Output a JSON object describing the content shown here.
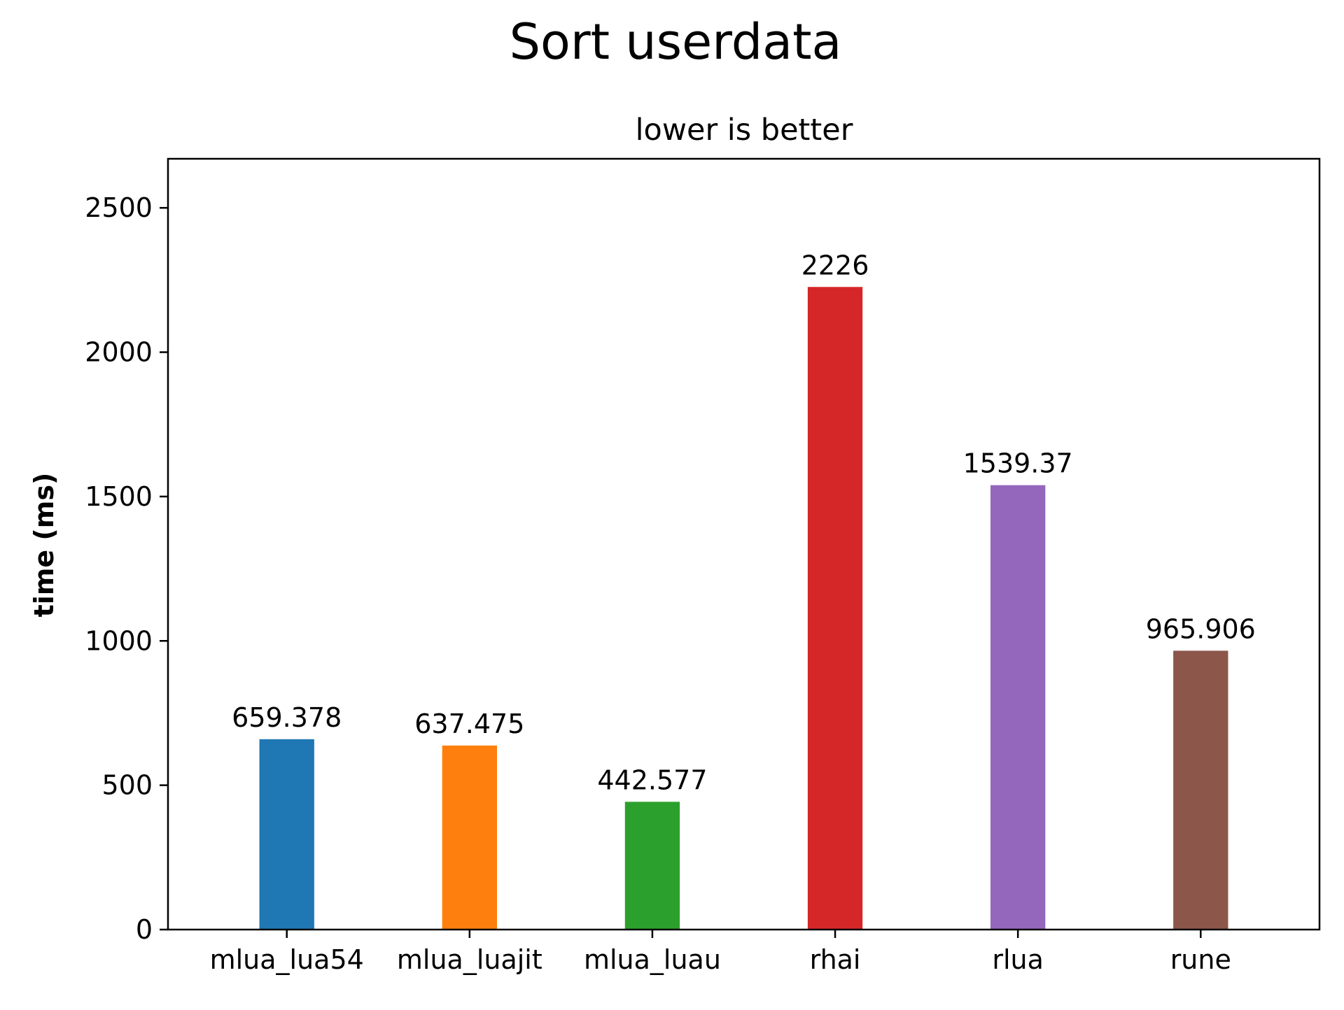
{
  "chart_data": {
    "type": "bar",
    "title": "Sort userdata",
    "subtitle": "lower is better",
    "xlabel": "",
    "ylabel": "time (ms)",
    "ylim": [
      0,
      2670
    ],
    "yticks": [
      0,
      500,
      1000,
      1500,
      2000,
      2500
    ],
    "grid": false,
    "legend": "none",
    "categories": [
      "mlua_lua54",
      "mlua_luajit",
      "mlua_luau",
      "rhai",
      "rlua",
      "rune"
    ],
    "values": [
      659.378,
      637.475,
      442.577,
      2226,
      1539.37,
      965.906
    ],
    "value_labels": [
      "659.378",
      "637.475",
      "442.577",
      "2226",
      "1539.37",
      "965.906"
    ],
    "colors": [
      "#1f77b4",
      "#ff7f0e",
      "#2ca02c",
      "#d62728",
      "#9467bd",
      "#8c564b"
    ]
  }
}
